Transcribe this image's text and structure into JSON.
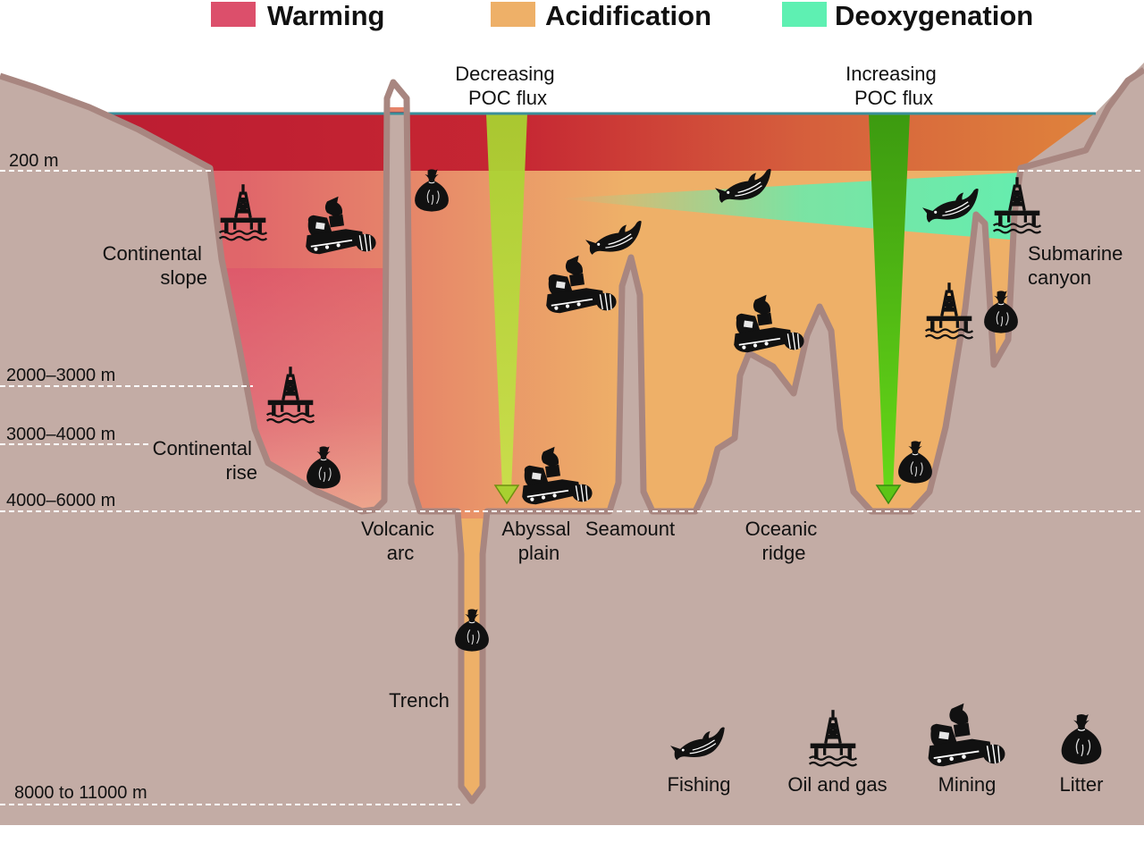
{
  "legend": {
    "warming": {
      "label": "Warming",
      "color": "#dc4f6b"
    },
    "acidification": {
      "label": "Acidification",
      "color": "#eeb068"
    },
    "deoxygenation": {
      "label": "Deoxygenation",
      "color": "#5ef0b2"
    }
  },
  "depths": {
    "d200": "200 m",
    "d2000": "2000–3000 m",
    "d3000": "3000–4000 m",
    "d4000": "4000–6000 m",
    "d8000": "8000 to 11000 m"
  },
  "flux": {
    "decreasing": [
      "Decreasing",
      "POC flux"
    ],
    "increasing": [
      "Increasing",
      "POC flux"
    ]
  },
  "features": {
    "continental_slope": [
      "Continental",
      "slope"
    ],
    "continental_rise": [
      "Continental",
      "rise"
    ],
    "volcanic_arc": [
      "Volcanic",
      "arc"
    ],
    "abyssal_plain": [
      "Abyssal",
      "plain"
    ],
    "seamount": "Seamount",
    "oceanic_ridge": [
      "Oceanic",
      "ridge"
    ],
    "trench": "Trench",
    "submarine_canyon": [
      "Submarine",
      "canyon"
    ]
  },
  "key": {
    "fishing": "Fishing",
    "oil_gas": "Oil and gas",
    "mining": "Mining",
    "litter": "Litter"
  },
  "colors": {
    "seabed": "#c3aca5",
    "outline": "#a88680",
    "surface_line": "#3a8f9a"
  }
}
